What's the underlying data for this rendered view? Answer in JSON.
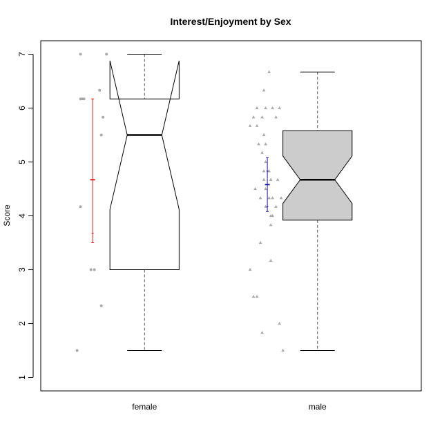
{
  "chart_data": {
    "type": "boxplot",
    "title": "Interest/Enjoyment by Sex",
    "xlabel": "",
    "ylabel": "Score",
    "ylim": [
      0.75,
      7.25
    ],
    "y_ticks": [
      1,
      2,
      3,
      4,
      5,
      6,
      7
    ],
    "y_tick_labels": [
      "1",
      "2",
      "3",
      "4",
      "5",
      "6",
      "7"
    ],
    "categories": [
      "female",
      "male"
    ],
    "grid": false,
    "boxes": [
      {
        "name": "female",
        "min": 1.5,
        "q1": 3.0,
        "median": 5.5,
        "q3": 6.17,
        "max": 7.0,
        "notch_low": 4.12,
        "notch_high": 6.88,
        "fill": "#ffffff",
        "points": [
          [
            -0.37,
            7.0
          ],
          [
            -0.22,
            7.0
          ],
          [
            -0.37,
            6.17
          ],
          [
            -0.36,
            6.17
          ],
          [
            -0.35,
            6.17
          ],
          [
            -0.26,
            6.33
          ],
          [
            -0.24,
            5.83
          ],
          [
            -0.25,
            5.5
          ],
          [
            -0.37,
            4.17
          ],
          [
            -0.31,
            3.0
          ],
          [
            -0.29,
            3.0
          ],
          [
            -0.25,
            2.33
          ],
          [
            -0.39,
            1.5
          ]
        ],
        "point_color": "#aaaaaa",
        "mean": 4.67,
        "ci_low": 3.5,
        "ci_high": 6.17,
        "ci_color": "#e31a1c",
        "ci_marks": [
          3.67
        ]
      },
      {
        "name": "male",
        "min": 1.5,
        "q1": 3.92,
        "median": 4.67,
        "q3": 5.58,
        "max": 6.67,
        "notch_low": 4.23,
        "notch_high": 5.11,
        "fill": "#cccccc",
        "points": [
          [
            -0.28,
            6.67
          ],
          [
            -0.31,
            6.33
          ],
          [
            -0.35,
            6.0
          ],
          [
            -0.3,
            6.0
          ],
          [
            -0.26,
            6.0
          ],
          [
            -0.22,
            6.0
          ],
          [
            -0.37,
            5.83
          ],
          [
            -0.32,
            5.83
          ],
          [
            -0.24,
            5.83
          ],
          [
            -0.39,
            5.67
          ],
          [
            -0.35,
            5.67
          ],
          [
            -0.31,
            5.5
          ],
          [
            -0.34,
            5.33
          ],
          [
            -0.3,
            5.33
          ],
          [
            -0.32,
            5.17
          ],
          [
            -0.3,
            5.0
          ],
          [
            -0.31,
            4.83
          ],
          [
            -0.28,
            4.83
          ],
          [
            -0.31,
            4.67
          ],
          [
            -0.27,
            4.67
          ],
          [
            -0.23,
            4.67
          ],
          [
            -0.36,
            4.5
          ],
          [
            -0.3,
            4.5
          ],
          [
            -0.33,
            4.33
          ],
          [
            -0.28,
            4.33
          ],
          [
            -0.26,
            4.33
          ],
          [
            -0.21,
            4.33
          ],
          [
            -0.3,
            4.17
          ],
          [
            -0.24,
            4.17
          ],
          [
            -0.27,
            4.0
          ],
          [
            -0.26,
            4.0
          ],
          [
            -0.27,
            3.83
          ],
          [
            -0.33,
            3.5
          ],
          [
            -0.27,
            3.17
          ],
          [
            -0.39,
            3.0
          ],
          [
            -0.37,
            2.5
          ],
          [
            -0.35,
            2.5
          ],
          [
            -0.22,
            2.0
          ],
          [
            -0.32,
            1.83
          ],
          [
            -0.2,
            1.5
          ]
        ],
        "point_color": "#aaaaaa",
        "mean": 4.58,
        "ci_low": 4.08,
        "ci_high": 5.08,
        "ci_color": "#1a1aaa",
        "ci_marks": [
          4.17,
          4.83
        ]
      }
    ]
  }
}
